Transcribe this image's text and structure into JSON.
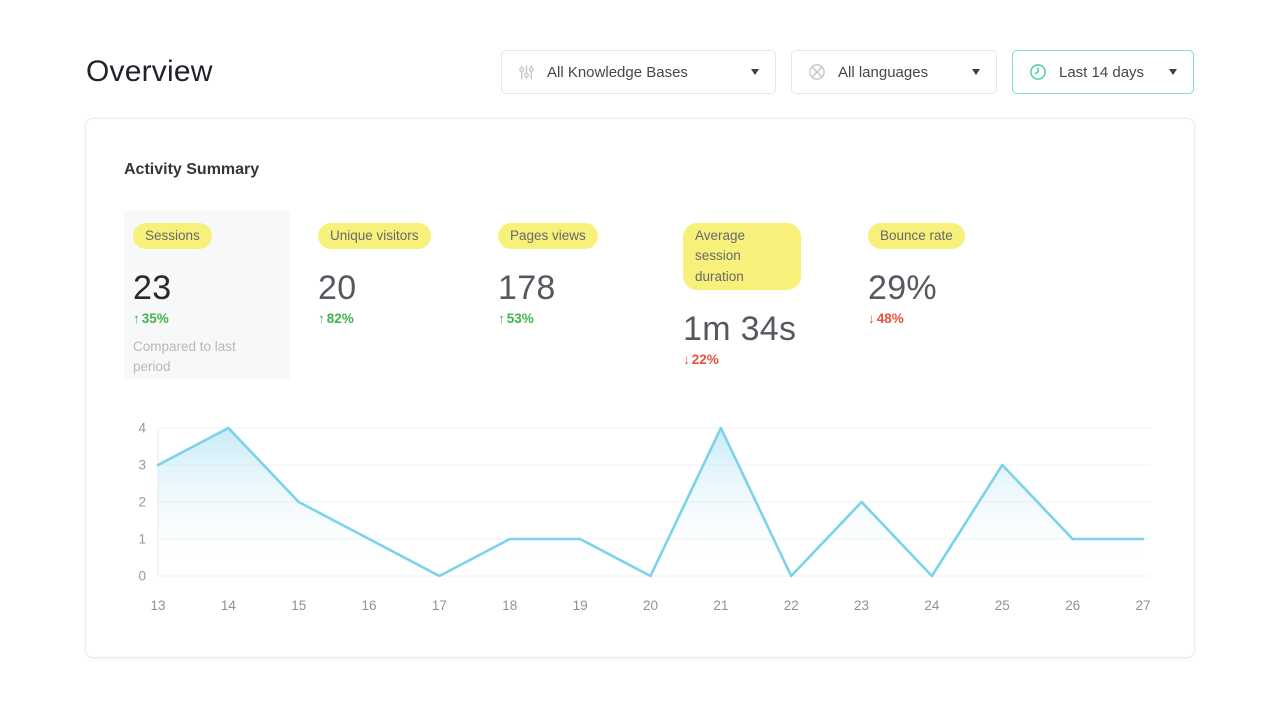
{
  "page": {
    "title": "Overview"
  },
  "filters": {
    "knowledge_bases": {
      "label": "All Knowledge Bases"
    },
    "languages": {
      "label": "All languages"
    },
    "date_range": {
      "label": "Last 14 days"
    }
  },
  "card": {
    "title": "Activity Summary",
    "metrics": [
      {
        "label": "Sessions",
        "value": "23",
        "arrow": "↑",
        "delta": "35%",
        "trend": "up",
        "note": "Compared to last period"
      },
      {
        "label": "Unique visitors",
        "value": "20",
        "arrow": "↑",
        "delta": "82%",
        "trend": "up"
      },
      {
        "label": "Pages views",
        "value": "178",
        "arrow": "↑",
        "delta": "53%",
        "trend": "up"
      },
      {
        "label": "Average session duration",
        "value": "1m 34s",
        "arrow": "↓",
        "delta": "22%",
        "trend": "down"
      },
      {
        "label": "Bounce rate",
        "value": "29%",
        "arrow": "↓",
        "delta": "48%",
        "trend": "down"
      }
    ]
  },
  "chart_data": {
    "type": "area",
    "x": [
      13,
      14,
      15,
      16,
      17,
      18,
      19,
      20,
      21,
      22,
      23,
      24,
      25,
      26,
      27
    ],
    "series": [
      {
        "name": "Sessions",
        "values": [
          3,
          4,
          2,
          1,
          0,
          1,
          1,
          0,
          4,
          0,
          2,
          0,
          3,
          1,
          1
        ]
      }
    ],
    "title": "",
    "xlabel": "",
    "ylabel": "",
    "ylim": [
      0,
      4
    ],
    "yticks": [
      0,
      1,
      2,
      3,
      4
    ],
    "grid": "horizontal",
    "legend": "none",
    "line_color": "#7cd2ea",
    "fill_top_color": "rgba(144,216,240,0.5)",
    "fill_bottom_color": "rgba(255,255,255,0)",
    "axis_text_color": "#96999e",
    "grid_color": "#f0f1f3"
  },
  "colors": {
    "positive": "#3eb64d",
    "negative": "#e8503e",
    "highlight": "#f7f17b",
    "mint_accent": "#50d5a2",
    "mint_border": "#82e0bd"
  }
}
